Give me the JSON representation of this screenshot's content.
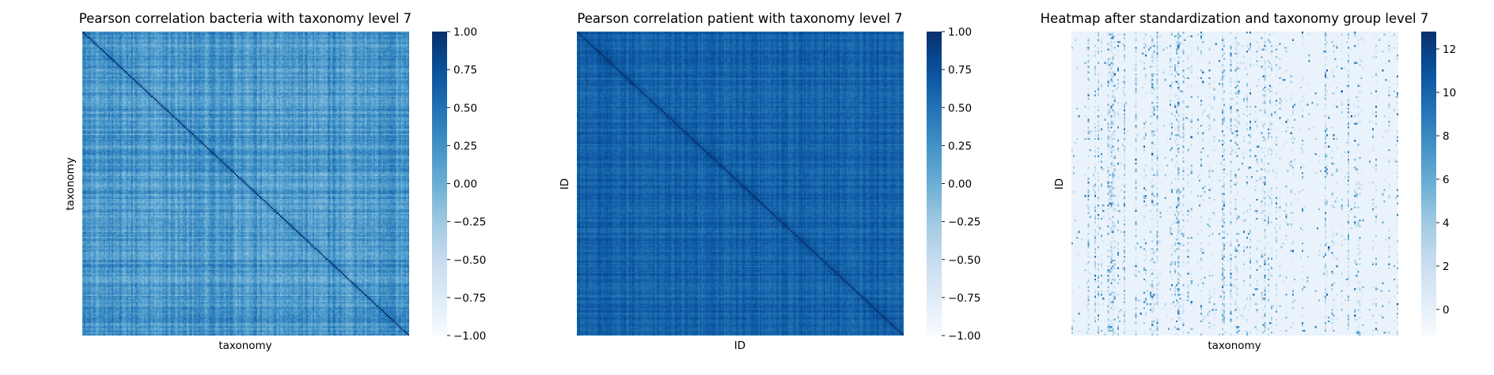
{
  "chart_data": [
    {
      "type": "heatmap",
      "title": "Pearson correlation bacteria with taxonomy level 7",
      "xlabel": "taxonomy",
      "ylabel": "taxonomy",
      "colormap": "Blues",
      "vmin": -1.0,
      "vmax": 1.0,
      "colorbar_ticks": [
        1.0,
        0.75,
        0.5,
        0.25,
        0.0,
        -0.25,
        -0.5,
        -0.75,
        -1.0
      ],
      "colorbar_tick_labels": [
        "1.00",
        "0.75",
        "0.50",
        "0.25",
        "0.00",
        "−0.25",
        "−0.50",
        "−0.75",
        "−1.00"
      ],
      "matrix": {
        "kind": "correlation",
        "size": 200,
        "diagonal": 1.0,
        "typical_offdiag": 0.2,
        "spread": 0.35
      }
    },
    {
      "type": "heatmap",
      "title": "Pearson correlation patient with taxonomy level 7",
      "xlabel": "ID",
      "ylabel": "ID",
      "colormap": "Blues",
      "vmin": -1.0,
      "vmax": 1.0,
      "colorbar_ticks": [
        1.0,
        0.75,
        0.5,
        0.25,
        0.0,
        -0.25,
        -0.5,
        -0.75,
        -1.0
      ],
      "colorbar_tick_labels": [
        "1.00",
        "0.75",
        "0.50",
        "0.25",
        "0.00",
        "−0.25",
        "−0.50",
        "−0.75",
        "−1.00"
      ],
      "matrix": {
        "kind": "correlation",
        "size": 200,
        "diagonal": 1.0,
        "typical_offdiag": 0.62,
        "spread": 0.2
      }
    },
    {
      "type": "heatmap",
      "title": "Heatmap after standardization and taxonomy group level 7",
      "xlabel": "taxonomy",
      "ylabel": "ID",
      "colormap": "Blues",
      "vmin": -1.2,
      "vmax": 12.8,
      "colorbar_ticks": [
        12,
        10,
        8,
        6,
        4,
        2,
        0
      ],
      "colorbar_tick_labels": [
        "12",
        "10",
        "8",
        "6",
        "4",
        "2",
        "0"
      ],
      "matrix": {
        "kind": "standardized",
        "rows": 160,
        "cols": 200,
        "baseline": -0.3,
        "max": 12.8
      }
    }
  ]
}
